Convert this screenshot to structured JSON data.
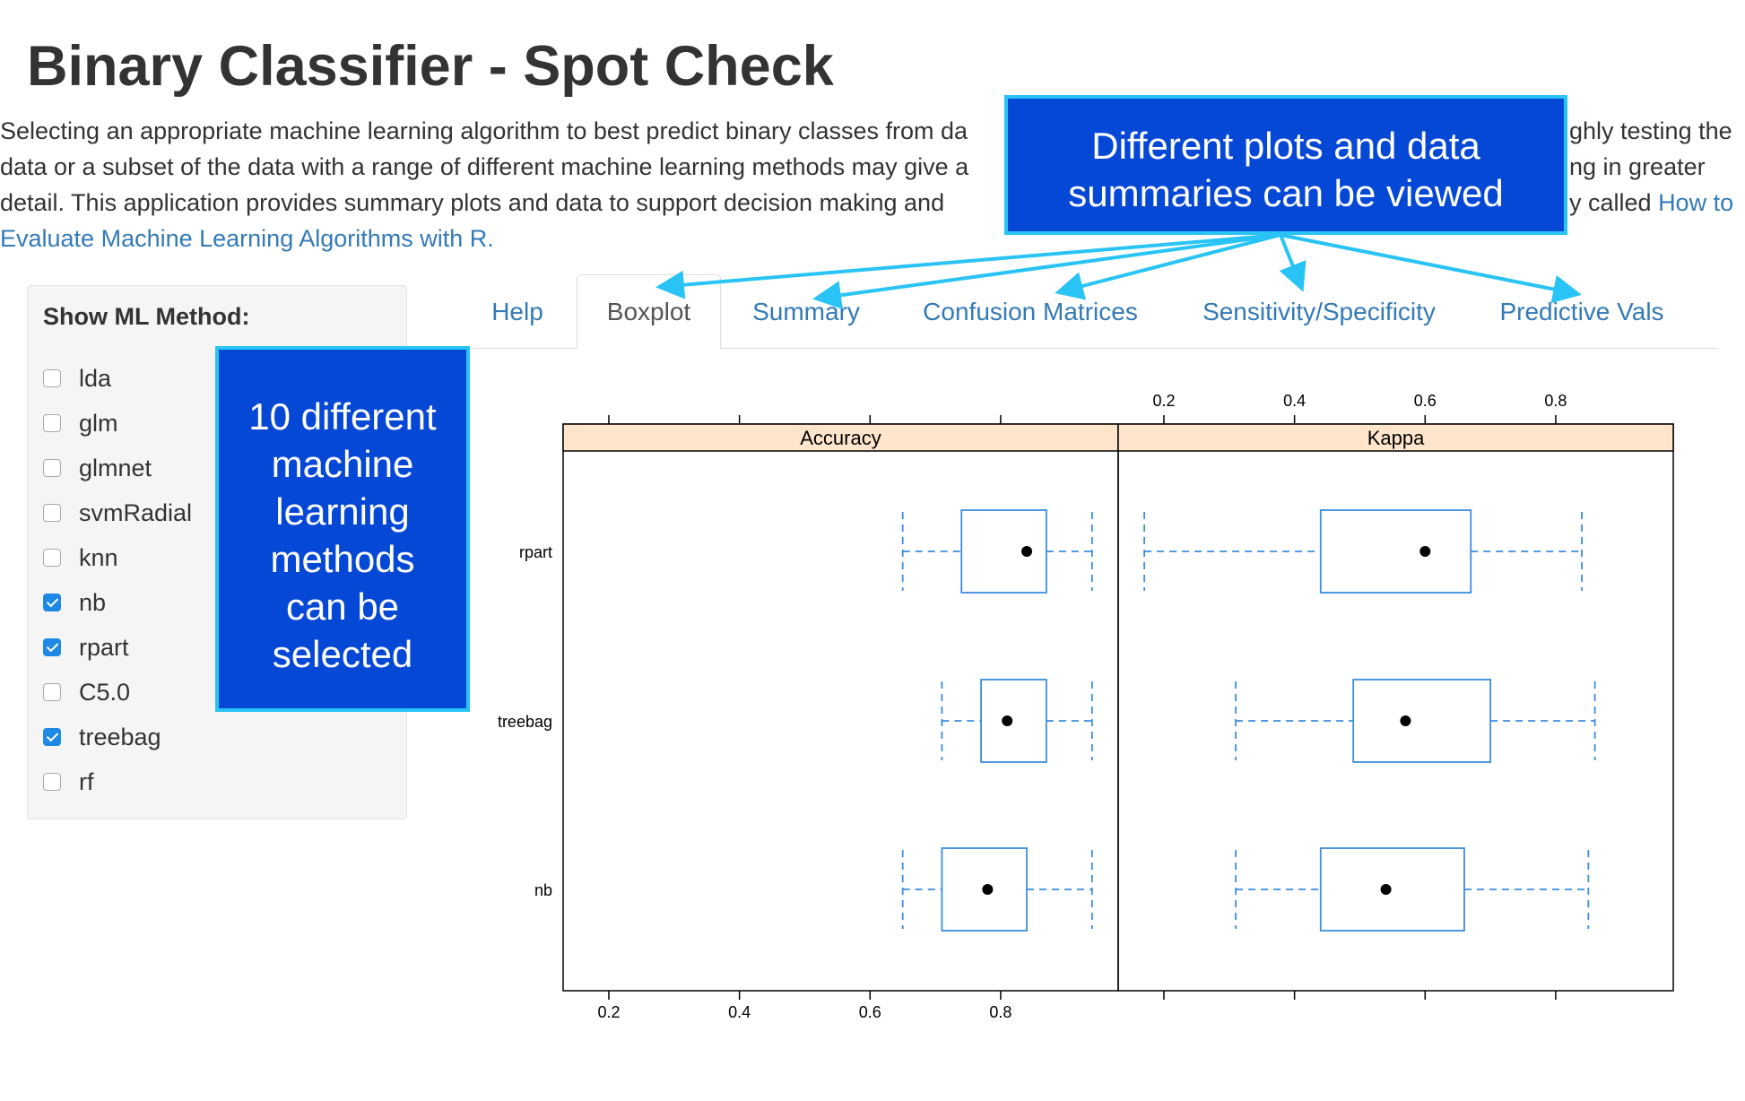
{
  "page": {
    "title": "Binary Classifier - Spot Check",
    "intro_line1": "Selecting an appropriate machine learning algorithm to best predict binary classes from da",
    "intro_line1_end": "ghly testing the",
    "intro_line2": "data or a subset of the data with a range of different machine learning methods may give a",
    "intro_line2_end": "ng in greater",
    "intro_line3": "detail. This application provides summary plots and data to support decision making and",
    "intro_line3_end": "y called ",
    "intro_link_part1": "How to",
    "intro_link_part2": "Evaluate Machine Learning Algorithms with R."
  },
  "sidebar": {
    "title": "Show ML Method:",
    "methods": [
      {
        "label": "lda",
        "checked": false
      },
      {
        "label": "glm",
        "checked": false
      },
      {
        "label": "glmnet",
        "checked": false
      },
      {
        "label": "svmRadial",
        "checked": false
      },
      {
        "label": "knn",
        "checked": false
      },
      {
        "label": "nb",
        "checked": true
      },
      {
        "label": "rpart",
        "checked": true
      },
      {
        "label": "C5.0",
        "checked": false
      },
      {
        "label": "treebag",
        "checked": true
      },
      {
        "label": "rf",
        "checked": false
      }
    ]
  },
  "tabs": [
    {
      "label": "Help",
      "active": false
    },
    {
      "label": "Boxplot",
      "active": true
    },
    {
      "label": "Summary",
      "active": false
    },
    {
      "label": "Confusion Matrices",
      "active": false
    },
    {
      "label": "Sensitivity/Specificity",
      "active": false
    },
    {
      "label": "Predictive Vals",
      "active": false
    }
  ],
  "callouts": {
    "methods": [
      "10 different",
      "machine",
      "learning",
      "methods",
      "can be",
      "selected"
    ],
    "plots": [
      "Different plots and data",
      "summaries can be viewed"
    ]
  },
  "colors": {
    "callout_bg": "#0648d6",
    "callout_border": "#29c4f5",
    "box_stroke": "#3b8de0",
    "strip_bg": "#ffe5cc",
    "link": "#337ab7"
  },
  "chart_data": {
    "type": "boxplot",
    "panels": [
      "Accuracy",
      "Kappa"
    ],
    "categories": [
      "rpart",
      "treebag",
      "nb"
    ],
    "xlim": [
      0.13,
      0.98
    ],
    "ticks": [
      0.2,
      0.4,
      0.6,
      0.8
    ],
    "tick_labels": [
      "0.2",
      "0.4",
      "0.6",
      "0.8"
    ],
    "series": [
      {
        "panel": "Accuracy",
        "category": "rpart",
        "min": 0.65,
        "q1": 0.74,
        "median": 0.84,
        "q3": 0.87,
        "max": 0.94
      },
      {
        "panel": "Accuracy",
        "category": "treebag",
        "min": 0.71,
        "q1": 0.77,
        "median": 0.81,
        "q3": 0.87,
        "max": 0.94
      },
      {
        "panel": "Accuracy",
        "category": "nb",
        "min": 0.65,
        "q1": 0.71,
        "median": 0.78,
        "q3": 0.84,
        "max": 0.94
      },
      {
        "panel": "Kappa",
        "category": "rpart",
        "min": 0.17,
        "q1": 0.44,
        "median": 0.6,
        "q3": 0.67,
        "max": 0.84
      },
      {
        "panel": "Kappa",
        "category": "treebag",
        "min": 0.31,
        "q1": 0.49,
        "median": 0.57,
        "q3": 0.7,
        "max": 0.86
      },
      {
        "panel": "Kappa",
        "category": "nb",
        "min": 0.31,
        "q1": 0.44,
        "median": 0.54,
        "q3": 0.66,
        "max": 0.85
      }
    ]
  }
}
